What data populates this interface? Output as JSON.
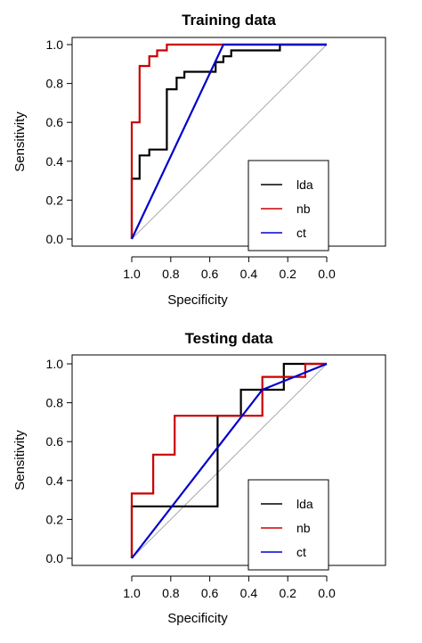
{
  "chart_data": [
    {
      "type": "line",
      "title": "Training data",
      "xlabel": "Specificity",
      "ylabel": "Sensitivity",
      "x_reversed": true,
      "xlim": [
        1.0,
        0.0
      ],
      "ylim": [
        0.0,
        1.0
      ],
      "xticks": [
        "1.0",
        "0.8",
        "0.6",
        "0.4",
        "0.2",
        "0.0"
      ],
      "yticks": [
        "0.0",
        "0.2",
        "0.4",
        "0.6",
        "0.8",
        "1.0"
      ],
      "grid": false,
      "legend": "bottom-right",
      "reference_line": {
        "from": [
          1.0,
          0.0
        ],
        "to": [
          0.0,
          1.0
        ],
        "color": "#aaaaaa"
      },
      "series": [
        {
          "name": "lda",
          "color": "#000000",
          "points": [
            [
              1.0,
              0.0
            ],
            [
              1.0,
              0.31
            ],
            [
              0.96,
              0.31
            ],
            [
              0.96,
              0.43
            ],
            [
              0.91,
              0.43
            ],
            [
              0.91,
              0.46
            ],
            [
              0.82,
              0.46
            ],
            [
              0.82,
              0.77
            ],
            [
              0.77,
              0.77
            ],
            [
              0.77,
              0.83
            ],
            [
              0.73,
              0.83
            ],
            [
              0.73,
              0.86
            ],
            [
              0.57,
              0.86
            ],
            [
              0.57,
              0.91
            ],
            [
              0.53,
              0.91
            ],
            [
              0.53,
              0.94
            ],
            [
              0.49,
              0.94
            ],
            [
              0.49,
              0.97
            ],
            [
              0.24,
              0.97
            ],
            [
              0.24,
              1.0
            ],
            [
              0.0,
              1.0
            ]
          ]
        },
        {
          "name": "nb",
          "color": "#cc0000",
          "points": [
            [
              1.0,
              0.0
            ],
            [
              1.0,
              0.6
            ],
            [
              0.96,
              0.6
            ],
            [
              0.96,
              0.89
            ],
            [
              0.91,
              0.89
            ],
            [
              0.91,
              0.94
            ],
            [
              0.87,
              0.94
            ],
            [
              0.87,
              0.97
            ],
            [
              0.82,
              0.97
            ],
            [
              0.82,
              1.0
            ],
            [
              0.0,
              1.0
            ]
          ]
        },
        {
          "name": "ct",
          "color": "#0000cc",
          "points": [
            [
              1.0,
              0.0
            ],
            [
              0.53,
              1.0
            ],
            [
              0.0,
              1.0
            ]
          ]
        }
      ]
    },
    {
      "type": "line",
      "title": "Testing data",
      "xlabel": "Specificity",
      "ylabel": "Sensitivity",
      "x_reversed": true,
      "xlim": [
        1.0,
        0.0
      ],
      "ylim": [
        0.0,
        1.0
      ],
      "xticks": [
        "1.0",
        "0.8",
        "0.6",
        "0.4",
        "0.2",
        "0.0"
      ],
      "yticks": [
        "0.0",
        "0.2",
        "0.4",
        "0.6",
        "0.8",
        "1.0"
      ],
      "grid": false,
      "legend": "bottom-right",
      "reference_line": {
        "from": [
          1.0,
          0.0
        ],
        "to": [
          0.0,
          1.0
        ],
        "color": "#aaaaaa"
      },
      "series": [
        {
          "name": "lda",
          "color": "#000000",
          "points": [
            [
              1.0,
              0.0
            ],
            [
              1.0,
              0.267
            ],
            [
              0.56,
              0.267
            ],
            [
              0.56,
              0.733
            ],
            [
              0.44,
              0.733
            ],
            [
              0.44,
              0.867
            ],
            [
              0.22,
              0.867
            ],
            [
              0.22,
              1.0
            ],
            [
              0.0,
              1.0
            ]
          ]
        },
        {
          "name": "nb",
          "color": "#cc0000",
          "points": [
            [
              1.0,
              0.0
            ],
            [
              1.0,
              0.333
            ],
            [
              0.89,
              0.333
            ],
            [
              0.89,
              0.533
            ],
            [
              0.78,
              0.533
            ],
            [
              0.78,
              0.733
            ],
            [
              0.33,
              0.733
            ],
            [
              0.33,
              0.933
            ],
            [
              0.11,
              0.933
            ],
            [
              0.11,
              1.0
            ],
            [
              0.0,
              1.0
            ]
          ]
        },
        {
          "name": "ct",
          "color": "#0000cc",
          "points": [
            [
              1.0,
              0.0
            ],
            [
              0.33,
              0.867
            ],
            [
              0.0,
              1.0
            ]
          ]
        }
      ]
    }
  ]
}
